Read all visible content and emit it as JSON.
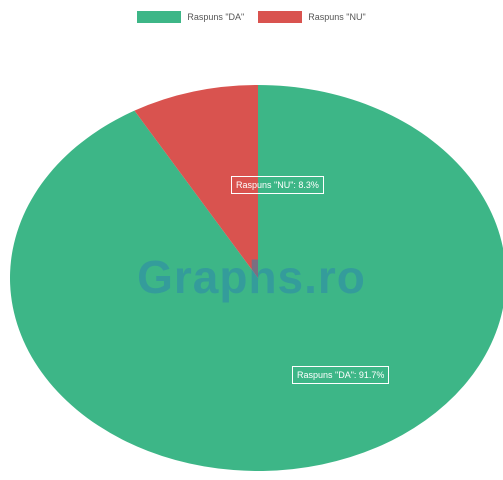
{
  "chart_data": {
    "type": "pie",
    "categories": [
      "Raspuns \"DA\"",
      "Raspuns \"NU\""
    ],
    "values": [
      91.7,
      8.3
    ],
    "colors": [
      "#3db687",
      "#d9534f"
    ],
    "data_labels": [
      "Raspuns \"DA\": 91.7%",
      "Raspuns \"NU\": 8.3%"
    ],
    "legend_position": "top",
    "start_angle": "top, clockwise, NU slice counter-clockwise from top"
  },
  "watermark": "Graphs.ro"
}
